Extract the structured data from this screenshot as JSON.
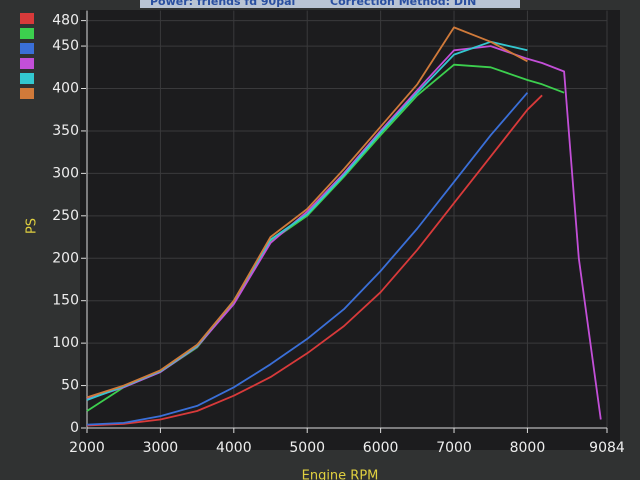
{
  "chart_data": {
    "type": "line",
    "header": [
      "Power: friends fd 90pal",
      "Correction Method: DIN"
    ],
    "xlabel": "Engine RPM",
    "ylabel": "PS",
    "x": [
      2000,
      2500,
      3000,
      3500,
      4000,
      4500,
      5000,
      5500,
      6000,
      6500,
      7000,
      7500,
      8000,
      8200,
      8500,
      8700,
      9000
    ],
    "series": [
      {
        "color": "#d83a3a",
        "values": [
          3,
          5,
          10,
          20,
          38,
          60,
          88,
          120,
          160,
          210,
          265,
          320,
          375,
          392,
          null,
          null,
          null
        ]
      },
      {
        "color": "#3ccf4e",
        "values": [
          20,
          48,
          66,
          95,
          148,
          220,
          250,
          296,
          345,
          392,
          428,
          425,
          410,
          405,
          395,
          null,
          null
        ]
      },
      {
        "color": "#3a6fd8",
        "values": [
          4,
          6,
          14,
          26,
          48,
          75,
          105,
          140,
          185,
          235,
          290,
          345,
          395,
          null,
          null,
          null,
          null
        ]
      },
      {
        "color": "#c34fd8",
        "values": [
          34,
          48,
          66,
          96,
          146,
          218,
          255,
          300,
          350,
          398,
          445,
          450,
          435,
          430,
          420,
          200,
          10
        ]
      },
      {
        "color": "#33c8d0",
        "values": [
          33,
          49,
          67,
          97,
          150,
          222,
          252,
          298,
          348,
          395,
          440,
          455,
          445,
          null,
          null,
          null,
          null
        ]
      },
      {
        "color": "#d07a3a",
        "values": [
          36,
          50,
          68,
          98,
          150,
          225,
          258,
          305,
          355,
          405,
          472,
          455,
          432,
          null,
          null,
          null,
          null
        ]
      }
    ],
    "xlim": [
      2000,
      9084
    ],
    "xticks": [
      2000,
      3000,
      4000,
      5000,
      6000,
      7000,
      8000,
      9084
    ],
    "ylim": [
      0,
      480
    ],
    "yticks": [
      0,
      50,
      100,
      150,
      200,
      250,
      300,
      350,
      400,
      450,
      480
    ],
    "grid": true
  }
}
